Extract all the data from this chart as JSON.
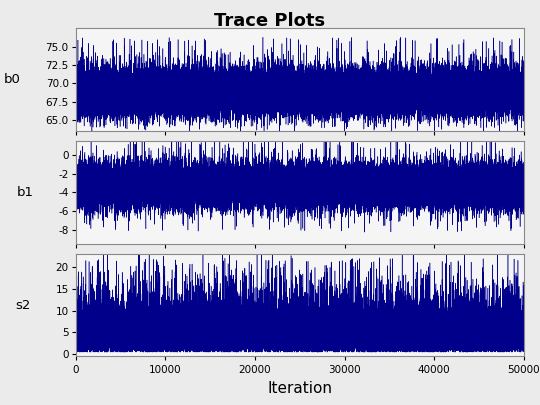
{
  "title": "Trace Plots",
  "title_fontsize": 13,
  "title_fontweight": "bold",
  "xlabel": "Iteration",
  "xlabel_fontsize": 11,
  "subplots": [
    {
      "ylabel": "b0",
      "ylim": [
        63.5,
        77.5
      ],
      "yticks": [
        65.0,
        67.5,
        70.0,
        72.5,
        75.0
      ],
      "mean": 68.8,
      "std": 1.5,
      "seed": 101
    },
    {
      "ylabel": "b1",
      "ylim": [
        -9.5,
        1.5
      ],
      "yticks": [
        -8,
        -6,
        -4,
        -2,
        0
      ],
      "mean": -3.3,
      "std": 1.1,
      "seed": 202
    },
    {
      "ylabel": "s2",
      "ylim": [
        -0.5,
        23.0
      ],
      "yticks": [
        0,
        5,
        10,
        15,
        20
      ],
      "mean": 3.5,
      "std": 2.5,
      "seed": 303
    }
  ],
  "n_iterations": 50000,
  "xlim": [
    0,
    50000
  ],
  "xticks": [
    0,
    10000,
    20000,
    30000,
    40000,
    50000
  ],
  "xtick_labels": [
    "0",
    "10000",
    "20000",
    "30000",
    "40000",
    "50000"
  ],
  "line_color": "#00008B",
  "line_width": 0.35,
  "background_color": "#ebebeb",
  "panel_facecolor": "#f5f5f5",
  "figsize": [
    5.4,
    4.05
  ],
  "dpi": 100
}
